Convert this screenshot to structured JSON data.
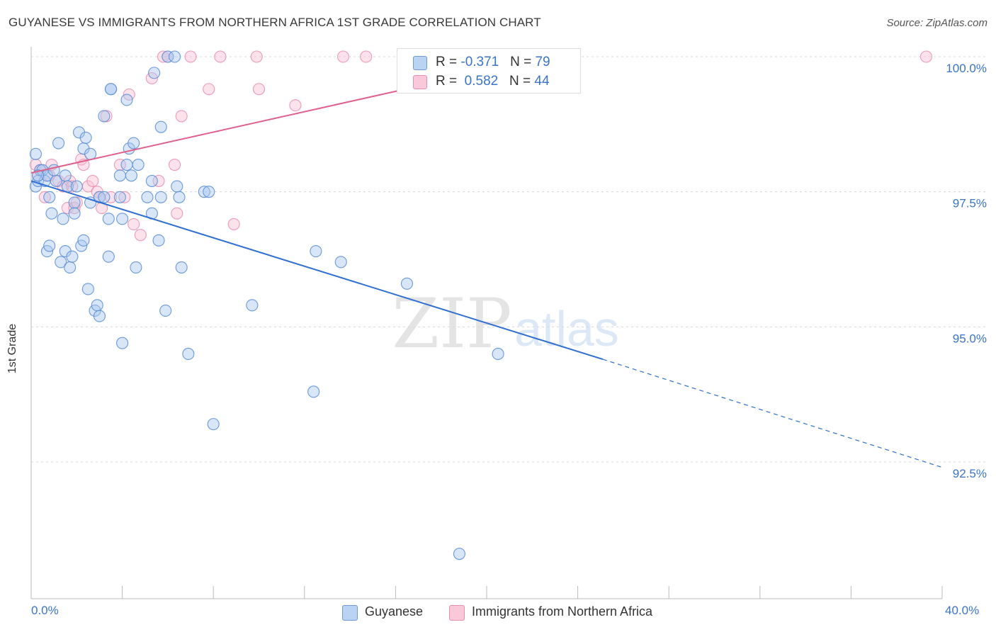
{
  "title": "GUYANESE VS IMMIGRANTS FROM NORTHERN AFRICA 1ST GRADE CORRELATION CHART",
  "source": "Source: ZipAtlas.com",
  "watermark": {
    "zip": "ZIP",
    "atlas": "atlas"
  },
  "legend_top": {
    "rows": [
      {
        "r_label": "R = ",
        "r_value": "-0.371",
        "n_label": "N = ",
        "n_value": "79"
      },
      {
        "r_label": "R = ",
        "r_value": "0.582",
        "n_label": "N = ",
        "n_value": "44"
      }
    ]
  },
  "chart_data": {
    "type": "scatter",
    "ylabel": "1st Grade",
    "xlim": [
      0,
      40
    ],
    "ylim": [
      90.1,
      100.4
    ],
    "x_tick_labels": {
      "left": "0.0%",
      "right": "40.0%"
    },
    "y_ticks": [
      {
        "value": 100.0,
        "label": "100.0%"
      },
      {
        "value": 97.5,
        "label": "97.5%"
      },
      {
        "value": 95.0,
        "label": "95.0%"
      },
      {
        "value": 92.5,
        "label": "92.5%"
      }
    ],
    "colors": {
      "series1_fill": "#a8c8f0",
      "series1_stroke": "#5b8fd6",
      "series1_line": "#2f6fcf",
      "series2_fill": "#f8c0d2",
      "series2_stroke": "#e990b0",
      "series2_line": "#e0608a"
    },
    "series": [
      {
        "name": "Guyanese",
        "trend": {
          "x0": 0,
          "y0": 97.7,
          "x1": 25.1,
          "y1": 94.4,
          "dash_to_x": 40,
          "dash_to_y": 92.4
        },
        "points": [
          [
            0.2,
            98.2
          ],
          [
            0.2,
            97.6
          ],
          [
            0.3,
            97.7
          ],
          [
            0.4,
            97.9
          ],
          [
            0.5,
            97.9
          ],
          [
            0.6,
            97.7
          ],
          [
            0.7,
            97.8
          ],
          [
            0.8,
            97.4
          ],
          [
            0.9,
            97.1
          ],
          [
            0.7,
            96.4
          ],
          [
            0.8,
            96.5
          ],
          [
            1.1,
            97.7
          ],
          [
            1.2,
            98.4
          ],
          [
            1.3,
            96.2
          ],
          [
            1.4,
            97.0
          ],
          [
            1.5,
            97.8
          ],
          [
            1.5,
            96.4
          ],
          [
            1.6,
            97.6
          ],
          [
            1.7,
            96.1
          ],
          [
            1.8,
            96.3
          ],
          [
            1.9,
            97.3
          ],
          [
            1.9,
            97.1
          ],
          [
            2.1,
            98.6
          ],
          [
            2.2,
            96.5
          ],
          [
            2.3,
            98.3
          ],
          [
            2.3,
            96.6
          ],
          [
            2.4,
            98.5
          ],
          [
            2.5,
            95.7
          ],
          [
            2.6,
            97.3
          ],
          [
            2.6,
            98.2
          ],
          [
            2.8,
            95.3
          ],
          [
            2.9,
            95.4
          ],
          [
            3.0,
            95.2
          ],
          [
            3.0,
            97.4
          ],
          [
            3.2,
            97.4
          ],
          [
            3.2,
            98.9
          ],
          [
            3.4,
            97.0
          ],
          [
            3.4,
            96.3
          ],
          [
            3.5,
            99.4
          ],
          [
            3.5,
            99.4
          ],
          [
            3.9,
            97.4
          ],
          [
            3.9,
            97.8
          ],
          [
            4.0,
            97.0
          ],
          [
            4.0,
            94.7
          ],
          [
            4.2,
            99.2
          ],
          [
            4.2,
            98.0
          ],
          [
            4.3,
            98.3
          ],
          [
            4.4,
            97.8
          ],
          [
            4.5,
            98.4
          ],
          [
            4.6,
            96.1
          ],
          [
            4.7,
            98.0
          ],
          [
            5.1,
            97.4
          ],
          [
            5.3,
            97.7
          ],
          [
            5.3,
            97.1
          ],
          [
            5.4,
            99.7
          ],
          [
            5.6,
            96.6
          ],
          [
            5.7,
            98.7
          ],
          [
            5.7,
            97.4
          ],
          [
            5.9,
            95.3
          ],
          [
            6.0,
            100.0
          ],
          [
            6.3,
            100.0
          ],
          [
            6.4,
            97.6
          ],
          [
            6.5,
            97.4
          ],
          [
            6.6,
            96.1
          ],
          [
            6.9,
            94.5
          ],
          [
            7.6,
            97.5
          ],
          [
            7.8,
            97.5
          ],
          [
            8.0,
            93.2
          ],
          [
            9.7,
            95.4
          ],
          [
            12.4,
            93.8
          ],
          [
            12.5,
            96.4
          ],
          [
            13.6,
            96.2
          ],
          [
            16.4,
            100.0
          ],
          [
            16.5,
            95.8
          ],
          [
            18.8,
            90.8
          ],
          [
            20.5,
            94.5
          ],
          [
            0.3,
            97.8
          ],
          [
            1.0,
            97.9
          ],
          [
            2.0,
            97.6
          ]
        ]
      },
      {
        "name": "Immigrants from Northern Africa",
        "trend": {
          "x0": 0,
          "y0": 97.85,
          "x1": 22.8,
          "y1": 100.0
        },
        "points": [
          [
            0.2,
            98.0
          ],
          [
            0.3,
            97.8
          ],
          [
            0.4,
            97.9
          ],
          [
            0.6,
            97.4
          ],
          [
            0.8,
            97.8
          ],
          [
            0.9,
            98.0
          ],
          [
            1.2,
            97.7
          ],
          [
            1.4,
            97.6
          ],
          [
            1.6,
            97.2
          ],
          [
            1.7,
            97.7
          ],
          [
            1.8,
            97.6
          ],
          [
            1.9,
            97.2
          ],
          [
            2.0,
            97.3
          ],
          [
            2.2,
            98.1
          ],
          [
            2.3,
            98.0
          ],
          [
            2.5,
            97.6
          ],
          [
            2.7,
            97.7
          ],
          [
            2.9,
            97.5
          ],
          [
            3.0,
            97.4
          ],
          [
            3.1,
            97.2
          ],
          [
            3.3,
            98.9
          ],
          [
            3.5,
            97.4
          ],
          [
            3.9,
            98.0
          ],
          [
            4.1,
            97.4
          ],
          [
            4.3,
            99.3
          ],
          [
            4.5,
            96.9
          ],
          [
            4.8,
            96.7
          ],
          [
            5.3,
            99.6
          ],
          [
            5.6,
            97.7
          ],
          [
            5.8,
            100.0
          ],
          [
            6.0,
            100.0
          ],
          [
            6.3,
            98.0
          ],
          [
            6.4,
            97.1
          ],
          [
            6.6,
            98.9
          ],
          [
            7.0,
            100.0
          ],
          [
            7.8,
            99.4
          ],
          [
            8.3,
            100.0
          ],
          [
            8.9,
            96.9
          ],
          [
            9.9,
            100.0
          ],
          [
            10.0,
            99.4
          ],
          [
            11.6,
            99.1
          ],
          [
            13.7,
            100.0
          ],
          [
            14.7,
            100.0
          ],
          [
            39.3,
            100.0
          ]
        ]
      }
    ]
  },
  "legend_bottom": {
    "items": [
      "Guyanese",
      "Immigrants from Northern Africa"
    ]
  }
}
